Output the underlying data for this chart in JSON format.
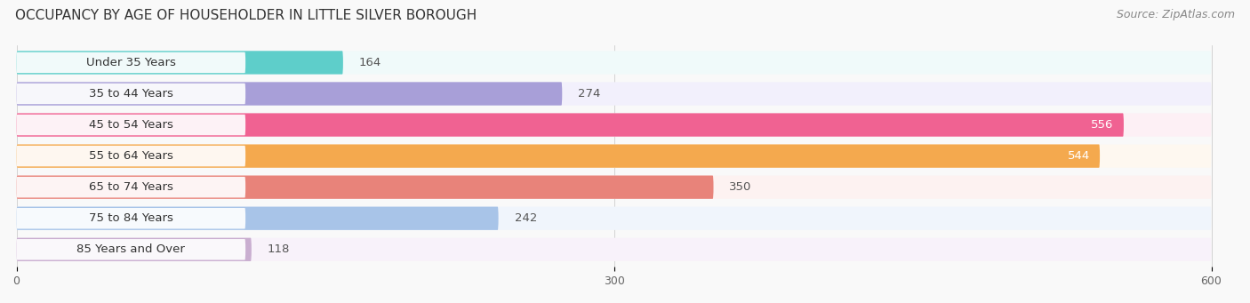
{
  "title": "OCCUPANCY BY AGE OF HOUSEHOLDER IN LITTLE SILVER BOROUGH",
  "source": "Source: ZipAtlas.com",
  "categories": [
    "Under 35 Years",
    "35 to 44 Years",
    "45 to 54 Years",
    "55 to 64 Years",
    "65 to 74 Years",
    "75 to 84 Years",
    "85 Years and Over"
  ],
  "values": [
    164,
    274,
    556,
    544,
    350,
    242,
    118
  ],
  "bar_colors": [
    "#5ececa",
    "#a89fd8",
    "#f06292",
    "#f4a94e",
    "#e8837a",
    "#a8c4e8",
    "#c9aed0"
  ],
  "bar_bg_colors": [
    "#eeeeee",
    "#eeeeee",
    "#eeeeee",
    "#eeeeee",
    "#eeeeee",
    "#eeeeee",
    "#eeeeee"
  ],
  "row_bg_colors": [
    "#f0fafa",
    "#f2f0fc",
    "#fdf0f5",
    "#fef8f0",
    "#fdf2f1",
    "#f0f5fc",
    "#f8f2fa"
  ],
  "xlim_max": 600,
  "xticks": [
    0,
    300,
    600
  ],
  "background_color": "#f9f9f9",
  "title_fontsize": 11,
  "source_fontsize": 9,
  "label_fontsize": 9.5,
  "value_fontsize": 9.5,
  "tick_fontsize": 9
}
